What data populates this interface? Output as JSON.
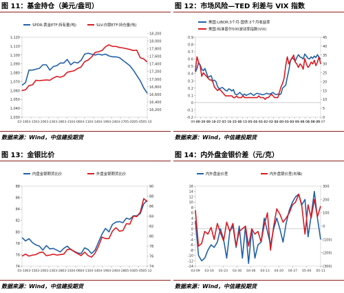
{
  "source_text": "数据来源：Wind，中信建投期货",
  "panels": [
    {
      "title": "图 11：基金持仓（美元/盎司）",
      "chart_data": {
        "type": "line",
        "title": "",
        "x_ticks": [
          "03-10",
          "03-15",
          "03-20",
          "03-23",
          "03-28",
          "03-31",
          "04-06",
          "04-11",
          "04-14",
          "04-19",
          "04-24",
          "04-27",
          "05-02",
          "05-05",
          "05-10"
        ],
        "left_axis": {
          "min": 1030,
          "max": 1120,
          "step": 10,
          "ticks": [
            "1,030",
            "1,040",
            "1,050",
            "1,060",
            "1,070",
            "1,080",
            "1,090",
            "1,100",
            "1,110",
            "1,120"
          ]
        },
        "right_axis": {
          "min": 16100,
          "max": 18200,
          "step": 200,
          "ticks": [
            "16,200",
            "16,400",
            "16,600",
            "16,800",
            "17,000",
            "17,200",
            "17,400",
            "17,600",
            "17,800",
            "18,000",
            "18,200"
          ]
        },
        "legend_position": "top",
        "series": [
          {
            "name": "SPDR:黄金ETF:持有量(吨)",
            "axis": "left",
            "color": "#1f5fa6",
            "values": [
              1066,
              1069,
              1083,
              1083,
              1084,
              1085,
              1089,
              1089,
              1083,
              1087,
              1088,
              1091,
              1091,
              1095,
              1089,
              1092,
              1091,
              1094,
              1101,
              1102,
              1101,
              1100,
              1101,
              1100,
              1101,
              1099,
              1098,
              1098,
              1097,
              1094,
              1091,
              1088,
              1083,
              1077,
              1071,
              1063,
              1057
            ]
          },
          {
            "name": "SLV:白银ETF:持仓量(吨)",
            "axis": "right",
            "color": "#d71920",
            "values": [
              16800,
              16820,
              16930,
              16950,
              17070,
              17060,
              17070,
              17080,
              17070,
              17130,
              17170,
              17150,
              17180,
              17280,
              17300,
              17320,
              17380,
              17420,
              17560,
              17600,
              17680,
              17800,
              17820,
              17850,
              17950,
              18000,
              17960,
              17960,
              17930,
              17920,
              17900,
              17880,
              17850,
              17860,
              17660,
              17630,
              17550
            ]
          }
        ]
      }
    },
    {
      "title": "图 12：市场风险—TED 利差与 VIX 指数",
      "chart_data": {
        "type": "line",
        "title": "",
        "x_ticks": [
          "09-20",
          "09-29",
          "10-09",
          "10-18",
          "10-27",
          "11-07",
          "11-16",
          "11-25",
          "12-06",
          "12-15",
          "12-25",
          "01-04",
          "01-13",
          "01-22",
          "02-01",
          "02-10",
          "02-20",
          "03-01",
          "03-10",
          "03-19",
          "03-30",
          "04-08",
          "04-19",
          "04-28",
          "05-07"
        ],
        "left_axis": {
          "min": -0.2,
          "max": 0.9,
          "step": 0.1,
          "ticks": [
            "-0.2",
            "-0.1",
            "0",
            "0.1",
            "0.2",
            "0.3",
            "0.4",
            "0.5",
            "0.6",
            "0.7",
            "0.8",
            "0.9"
          ]
        },
        "right_axis": {
          "min": 0,
          "max": 45,
          "step": 5,
          "ticks": [
            "0",
            "5",
            "10",
            "15",
            "20",
            "25",
            "30",
            "35",
            "40",
            "45"
          ]
        },
        "legend_position": "top-left",
        "series": [
          {
            "name": "美国:LIBOR:3个月-国债:3个月收益率",
            "axis": "left",
            "color": "#1f5fa6",
            "values": [
              0.42,
              0.47,
              0.55,
              0.52,
              0.46,
              0.44,
              0.47,
              0.41,
              0.35,
              0.36,
              0.37,
              0.3,
              0.31,
              0.29,
              0.22,
              0.19,
              0.2,
              0.21,
              0.19,
              0.17,
              0.16,
              0.19,
              0.18,
              0.16,
              0.18,
              0.12,
              0.11,
              0.12,
              0.14,
              0.12,
              0.1,
              0.12,
              0.1,
              0.11,
              0.12,
              0.13,
              0.11,
              0.1,
              0.12,
              0.13,
              0.12,
              0.12,
              0.11,
              0.11,
              0.12,
              0.13,
              0.12,
              0.12,
              0.13,
              0.14,
              0.12,
              0.11,
              0.12,
              0.11,
              0.12,
              0.2,
              0.22,
              0.24,
              0.35,
              0.45,
              0.58,
              0.62,
              0.6,
              0.57,
              0.62,
              0.66,
              0.63,
              0.62,
              0.6,
              0.67,
              0.64,
              0.61,
              0.6,
              0.63,
              0.61,
              0.64,
              0.62,
              0.66,
              0.62,
              0.6
            ]
          },
          {
            "name": "美国:标准普尔500波动率指数(VIX)",
            "axis": "right",
            "color": "#d71920",
            "values": [
              26,
              34,
              31,
              29,
              23,
              25,
              24,
              23,
              22,
              21,
              21,
              20,
              17,
              16,
              15,
              16,
              15,
              14,
              13,
              12,
              12,
              12,
              12,
              12,
              11,
              11,
              12,
              11,
              11,
              11,
              12,
              11,
              11,
              11,
              11,
              11,
              11,
              11,
              11,
              11,
              12,
              11,
              11,
              11,
              10,
              11,
              11,
              12,
              13,
              12,
              11,
              11,
              11,
              14,
              17,
              19,
              22,
              29,
              34,
              30,
              32,
              33,
              35,
              31,
              30,
              28,
              30,
              29,
              27,
              33,
              30,
              28,
              29,
              31,
              30,
              32,
              29,
              31,
              34,
              30
            ]
          }
        ]
      }
    },
    {
      "title": "图 13：金银比价",
      "chart_data": {
        "type": "line",
        "title": "",
        "x_ticks": [
          "03-10",
          "03-15",
          "03-20",
          "03-23",
          "03-28",
          "03-31",
          "04-06",
          "04-11",
          "04-14",
          "04-19",
          "04-24",
          "04-28",
          "05-03",
          "05-05",
          "05-12"
        ],
        "left_axis": {
          "min": 74,
          "max": 88,
          "step": 2,
          "ticks": [
            "74",
            "76",
            "78",
            "80",
            "82",
            "84",
            "86",
            "88"
          ]
        },
        "right_axis": {
          "min": 74,
          "max": 90,
          "step": 2,
          "ticks": [
            "74",
            "76",
            "78",
            "80",
            "82",
            "84",
            "86",
            "88",
            "90"
          ]
        },
        "legend_position": "top",
        "series": [
          {
            "name": "内盘金银期货比价",
            "axis": "left",
            "color": "#1f5fa6",
            "values": [
              79.0,
              78.4,
              78.8,
              78.1,
              77.7,
              77.5,
              76.8,
              77.6,
              77.0,
              77.1,
              76.8,
              76.5,
              77.1,
              77.5,
              76.9,
              76.6,
              76.3,
              76.2,
              77.2,
              76.9,
              76.2,
              76.8,
              78.2,
              79.6,
              80.6,
              80.0,
              81.3,
              81.7,
              81.8,
              81.6,
              82.4,
              82.2,
              82.8,
              82.8,
              83.2,
              84.9,
              85.5
            ]
          },
          {
            "name": "外盘金银期货比价",
            "axis": "right",
            "color": "#d71920",
            "values": [
              76.0,
              76.4,
              76.0,
              76.2,
              76.3,
              76.7,
              76.8,
              76.1,
              76.2,
              76.4,
              76.2,
              76.3,
              76.4,
              77.3,
              77.4,
              76.9,
              76.5,
              76.1,
              76.8,
              76.1,
              75.8,
              76.6,
              78.0,
              79.8,
              79.5,
              79.5,
              81.0,
              81.7,
              81.0,
              81.1,
              82.5,
              82.4,
              84.0,
              83.9,
              84.8,
              87.5,
              86.9
            ]
          }
        ]
      }
    },
    {
      "title": "图 14：内外盘金银价差（元/克）",
      "chart_data": {
        "type": "line",
        "title": "",
        "x_ticks": [
          "03-09",
          "03-16",
          "03-23",
          "03-30",
          "04-06",
          "04-13",
          "04-20",
          "04-27",
          "05-04",
          "05-11"
        ],
        "left_axis": {
          "min": -14,
          "max": 16,
          "step": 2,
          "ticks": [
            "-14",
            "-12",
            "-10",
            "-8",
            "-6",
            "-4",
            "-2",
            "0",
            "2",
            "4",
            "6",
            "8",
            "10",
            "12",
            "14",
            "16"
          ]
        },
        "right_axis": {
          "min": -300,
          "max": 300,
          "step": 100,
          "ticks": [
            "(300)",
            "(200)",
            "(100)",
            "0",
            "100",
            "200",
            "300"
          ]
        },
        "legend_position": "top",
        "series": [
          {
            "name": "内外盘金价差",
            "axis": "left",
            "color": "#1f5fa6",
            "values": [
              3,
              -10,
              -12,
              -11,
              -8,
              -6,
              -7,
              -5,
              0,
              -4,
              -11,
              -1,
              1,
              -7,
              1,
              -11,
              1,
              -13,
              0,
              -11,
              -6,
              -5,
              4,
              -1,
              -6,
              0,
              4,
              0,
              -5,
              2,
              7,
              10,
              12,
              13,
              9,
              11,
              -3,
              5,
              14,
              4,
              -4
            ]
          },
          {
            "name": "内外盘银价差(右轴)",
            "axis": "right",
            "color": "#d71920",
            "values": [
              120,
              -150,
              -130,
              -40,
              -60,
              -10,
              -100,
              20,
              -50,
              -110,
              30,
              -40,
              20,
              -150,
              -40,
              -20,
              0,
              -150,
              -20,
              -60,
              -40,
              -120,
              10,
              100,
              -180,
              0,
              130,
              90,
              30,
              60,
              100,
              160,
              180,
              240,
              150,
              -60,
              160,
              60,
              200,
              70,
              150
            ]
          }
        ]
      }
    }
  ]
}
